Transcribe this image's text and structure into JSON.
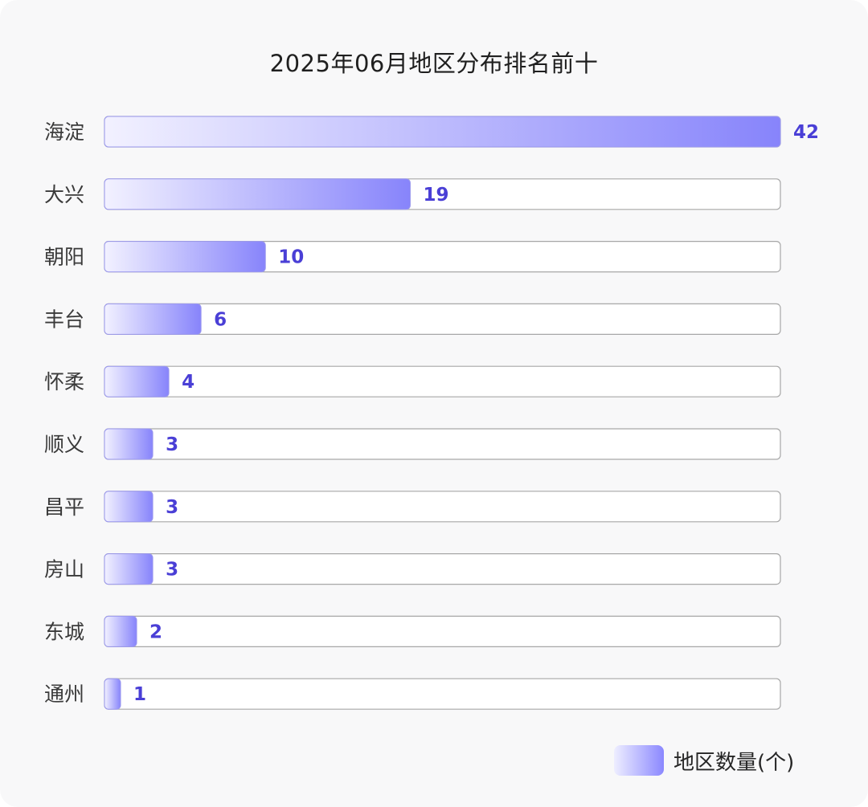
{
  "chart_data": {
    "type": "bar",
    "orientation": "horizontal",
    "title": "2025年06月地区分布排名前十",
    "categories": [
      "海淀",
      "大兴",
      "朝阳",
      "丰台",
      "怀柔",
      "顺义",
      "昌平",
      "房山",
      "东城",
      "通州"
    ],
    "series": [
      {
        "name": "地区数量(个)",
        "values": [
          42,
          19,
          10,
          6,
          4,
          3,
          3,
          3,
          2,
          1
        ]
      }
    ],
    "xlim": [
      0,
      42
    ],
    "grid": false,
    "legend_position": "bottom-right",
    "colors": {
      "bar_start": "#f2f1ff",
      "bar_end": "#8784fb",
      "value_text": "#4a3fd6",
      "track": "#ffffff"
    }
  }
}
